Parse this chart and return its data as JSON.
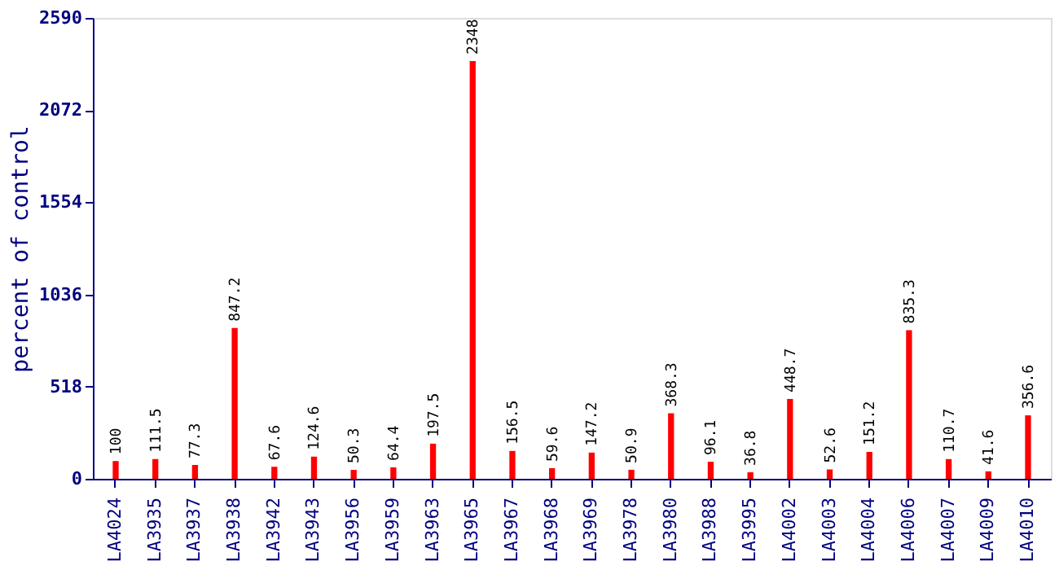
{
  "chart_data": {
    "type": "bar",
    "ylabel": "percent of control",
    "categories": [
      "LA4024",
      "LA3935",
      "LA3937",
      "LA3938",
      "LA3942",
      "LA3943",
      "LA3956",
      "LA3959",
      "LA3963",
      "LA3965",
      "LA3967",
      "LA3968",
      "LA3969",
      "LA3978",
      "LA3980",
      "LA3988",
      "LA3995",
      "LA4002",
      "LA4003",
      "LA4004",
      "LA4006",
      "LA4007",
      "LA4009",
      "LA4010"
    ],
    "values": [
      100,
      111.5,
      77.3,
      847.2,
      67.6,
      124.6,
      50.3,
      64.4,
      197.5,
      2348,
      156.5,
      59.6,
      147.2,
      50.9,
      368.3,
      96.1,
      36.8,
      448.7,
      52.6,
      151.2,
      835.3,
      110.7,
      41.6,
      356.6
    ],
    "color": "#ff0000",
    "ylim": [
      0,
      2590
    ],
    "yticks": [
      0,
      518,
      1036,
      1554,
      2072,
      2590
    ],
    "data_labels": true
  }
}
